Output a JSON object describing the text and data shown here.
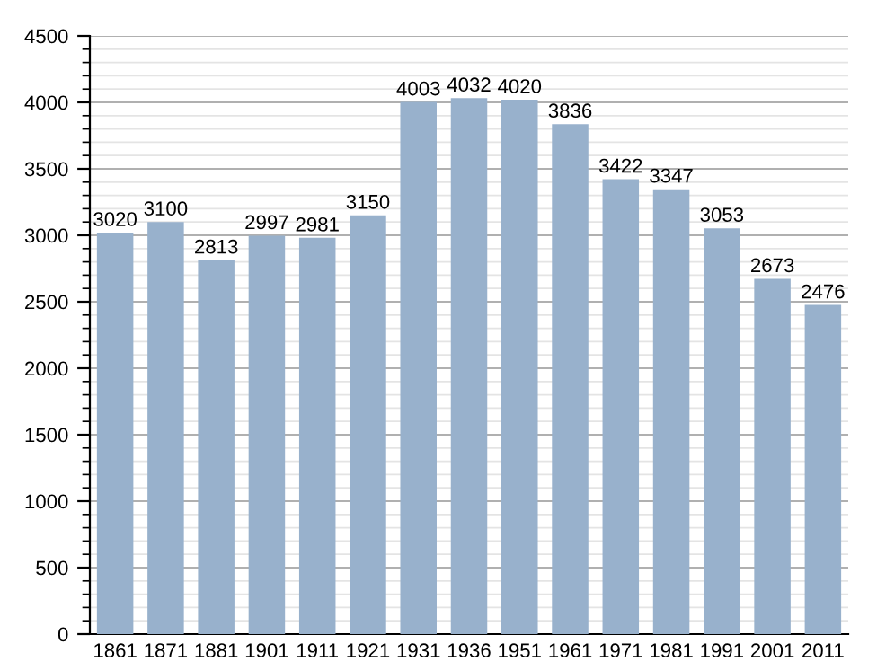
{
  "chart_data": {
    "type": "bar",
    "categories": [
      "1861",
      "1871",
      "1881",
      "1901",
      "1911",
      "1921",
      "1931",
      "1936",
      "1951",
      "1961",
      "1971",
      "1981",
      "1991",
      "2001",
      "2011"
    ],
    "values": [
      3020,
      3100,
      2813,
      2997,
      2981,
      3150,
      4003,
      4032,
      4020,
      3836,
      3422,
      3347,
      3053,
      2673,
      2476
    ],
    "color": "#98b1cc",
    "ylim": [
      0,
      4500
    ],
    "yticks": [
      0,
      500,
      1000,
      1500,
      2000,
      2500,
      3000,
      3500,
      4000,
      4500
    ],
    "grid": "y",
    "data_labels": true
  }
}
